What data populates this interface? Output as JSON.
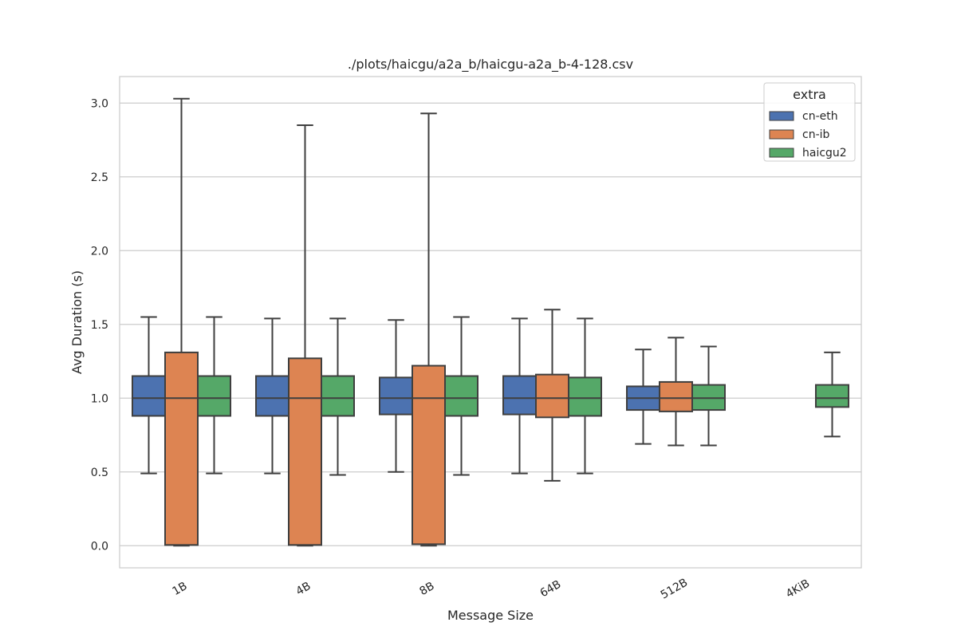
{
  "chart_data": {
    "type": "box",
    "title": "./plots/haicgu/a2a_b/haicgu-a2a_b-4-128.csv",
    "xlabel": "Message Size",
    "ylabel": "Avg Duration (s)",
    "categories": [
      "1B",
      "4B",
      "8B",
      "64B",
      "512B",
      "4KiB"
    ],
    "ylim": [
      -0.15,
      3.18
    ],
    "yticks": [
      0.0,
      0.5,
      1.0,
      1.5,
      2.0,
      2.5,
      3.0
    ],
    "ytick_labels": [
      "0.0",
      "0.5",
      "1.0",
      "1.5",
      "2.0",
      "2.5",
      "3.0"
    ],
    "grid": "horizontal",
    "legend": {
      "title": "extra",
      "placement": "top-right"
    },
    "series": [
      {
        "name": "cn-eth",
        "color": "#4c72b0",
        "boxes": [
          {
            "whisker_low": 0.49,
            "q1": 0.88,
            "median": 1.0,
            "q3": 1.15,
            "whisker_high": 1.55
          },
          {
            "whisker_low": 0.49,
            "q1": 0.88,
            "median": 1.0,
            "q3": 1.15,
            "whisker_high": 1.54
          },
          {
            "whisker_low": 0.5,
            "q1": 0.89,
            "median": 1.0,
            "q3": 1.14,
            "whisker_high": 1.53
          },
          {
            "whisker_low": 0.49,
            "q1": 0.89,
            "median": 1.0,
            "q3": 1.15,
            "whisker_high": 1.54
          },
          {
            "whisker_low": 0.69,
            "q1": 0.92,
            "median": 1.0,
            "q3": 1.08,
            "whisker_high": 1.33
          },
          null
        ]
      },
      {
        "name": "cn-ib",
        "color": "#dd8452",
        "boxes": [
          {
            "whisker_low": 0.0,
            "q1": 0.005,
            "median": 1.0,
            "q3": 1.31,
            "whisker_high": 3.03
          },
          {
            "whisker_low": 0.0,
            "q1": 0.005,
            "median": 1.0,
            "q3": 1.27,
            "whisker_high": 2.85
          },
          {
            "whisker_low": 0.0,
            "q1": 0.01,
            "median": 1.0,
            "q3": 1.22,
            "whisker_high": 2.93
          },
          {
            "whisker_low": 0.44,
            "q1": 0.87,
            "median": 1.0,
            "q3": 1.16,
            "whisker_high": 1.6
          },
          {
            "whisker_low": 0.68,
            "q1": 0.91,
            "median": 1.0,
            "q3": 1.11,
            "whisker_high": 1.41
          },
          null
        ]
      },
      {
        "name": "haicgu2",
        "color": "#55a868",
        "boxes": [
          {
            "whisker_low": 0.49,
            "q1": 0.88,
            "median": 1.0,
            "q3": 1.15,
            "whisker_high": 1.55
          },
          {
            "whisker_low": 0.48,
            "q1": 0.88,
            "median": 1.0,
            "q3": 1.15,
            "whisker_high": 1.54
          },
          {
            "whisker_low": 0.48,
            "q1": 0.88,
            "median": 1.0,
            "q3": 1.15,
            "whisker_high": 1.55
          },
          {
            "whisker_low": 0.49,
            "q1": 0.88,
            "median": 1.0,
            "q3": 1.14,
            "whisker_high": 1.54
          },
          {
            "whisker_low": 0.68,
            "q1": 0.92,
            "median": 1.0,
            "q3": 1.09,
            "whisker_high": 1.35
          },
          {
            "whisker_low": 0.74,
            "q1": 0.94,
            "median": 1.0,
            "q3": 1.09,
            "whisker_high": 1.31
          }
        ]
      }
    ]
  }
}
